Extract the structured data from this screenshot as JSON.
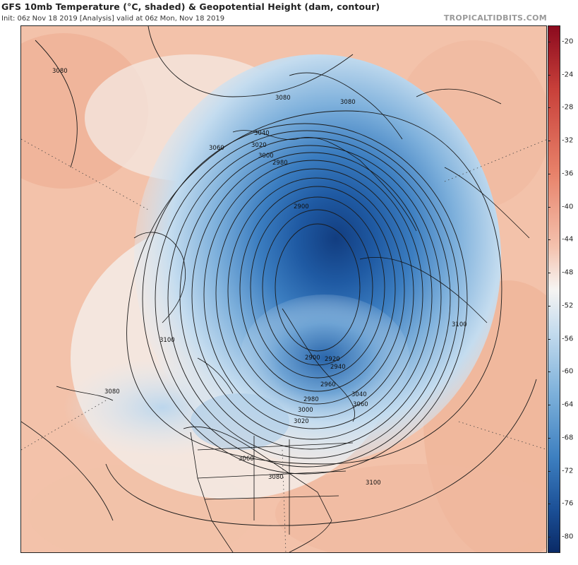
{
  "header": {
    "title": "GFS 10mb Temperature (°C, shaded) & Geopotential Height (dam, contour)",
    "subtitle": "Init: 06z Nov 18 2019   [Analysis]   valid at 06z Mon, Nov 18 2019",
    "brand": "TROPICALTIDBITS.COM"
  },
  "colorbar": {
    "ticks": [
      "-20",
      "-24",
      "-28",
      "-32",
      "-36",
      "-40",
      "-44",
      "-48",
      "-52",
      "-56",
      "-60",
      "-64",
      "-68",
      "-72",
      "-76",
      "-80"
    ],
    "warm_color": "#8b0a1e",
    "neutral_color": "#f6f4f2",
    "cold_color": "#0a2a66"
  },
  "contour_labels": [
    "3080",
    "3080",
    "3080",
    "3060",
    "3040",
    "3020",
    "3000",
    "2980",
    "2900",
    "3100",
    "3100",
    "3080",
    "2900",
    "2920",
    "2940",
    "2960",
    "2980",
    "3000",
    "3020",
    "3040",
    "3060",
    "3060",
    "3080",
    "3100"
  ]
}
